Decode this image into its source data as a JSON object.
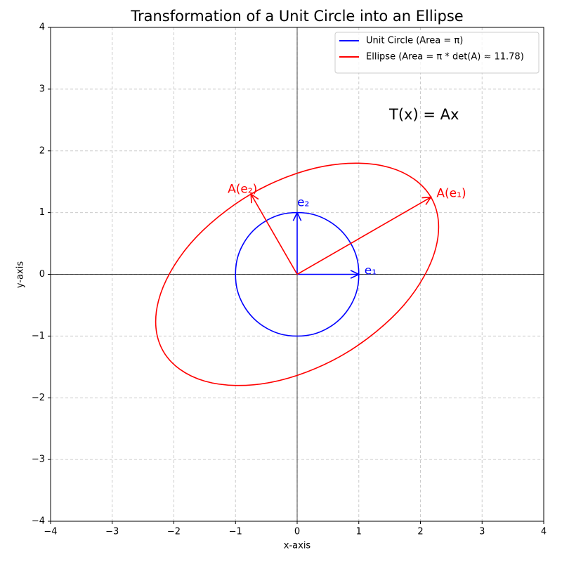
{
  "chart_data": {
    "type": "line",
    "title": "Transformation of a Unit Circle into an Ellipse",
    "xlabel": "x-axis",
    "ylabel": "y-axis",
    "xlim": [
      -4,
      4
    ],
    "ylim": [
      -4,
      4
    ],
    "xticks": [
      {
        "value": -4,
        "label": "−4"
      },
      {
        "value": -3,
        "label": "−3"
      },
      {
        "value": -2,
        "label": "−2"
      },
      {
        "value": -1,
        "label": "−1"
      },
      0,
      1,
      2,
      3,
      4
    ],
    "yticks": [
      {
        "value": -4,
        "label": "−4"
      },
      {
        "value": -3,
        "label": "−3"
      },
      {
        "value": -2,
        "label": "−2"
      },
      {
        "value": -1,
        "label": "−1"
      },
      0,
      1,
      2,
      3,
      4
    ],
    "grid": true,
    "legend": "upper right",
    "annotation": "T(x) = Ax",
    "series": [
      {
        "name": "Unit Circle (Area = π)",
        "color": "#0000ff",
        "x": [
          1,
          0.97,
          0.87,
          0.71,
          0.5,
          0.26,
          0,
          -0.26,
          -0.5,
          -0.71,
          -0.87,
          -0.97,
          -1,
          -0.97,
          -0.87,
          -0.71,
          -0.5,
          -0.26,
          0,
          0.26,
          0.5,
          0.71,
          0.87,
          0.97,
          1
        ],
        "y": [
          0,
          0.26,
          0.5,
          0.71,
          0.87,
          0.97,
          1,
          0.97,
          0.87,
          0.71,
          0.5,
          0.26,
          0,
          -0.26,
          -0.5,
          -0.71,
          -0.87,
          -0.97,
          -1,
          -0.97,
          -0.87,
          -0.71,
          -0.5,
          -0.26,
          0
        ]
      },
      {
        "name": "Ellipse (Area = π * det(A) ≈ 11.78)",
        "color": "#ff0000",
        "x": [
          2.17,
          1.9,
          1.5,
          1.0,
          0.43,
          -0.16,
          -0.75,
          -1.28,
          -1.73,
          -2.06,
          -2.25,
          -2.29,
          -2.17,
          -1.9,
          -1.5,
          -1.0,
          -0.43,
          0.16,
          0.75,
          1.28,
          1.73,
          2.06,
          2.25,
          2.29,
          2.17
        ],
        "y": [
          1.25,
          1.54,
          1.73,
          1.8,
          1.75,
          1.58,
          1.3,
          0.93,
          0.5,
          0.03,
          -0.43,
          -0.87,
          -1.25,
          -1.54,
          -1.73,
          -1.8,
          -1.75,
          -1.58,
          -1.3,
          -0.93,
          -0.5,
          -0.03,
          0.43,
          0.87,
          1.25
        ]
      }
    ],
    "vectors": [
      {
        "name": "e₁",
        "color": "#0000ff",
        "x": 1,
        "y": 0
      },
      {
        "name": "e₂",
        "color": "#0000ff",
        "x": 0,
        "y": 1
      },
      {
        "name": "A(e₁)",
        "color": "#ff0000",
        "x": 2.17,
        "y": 1.25
      },
      {
        "name": "A(e₂)",
        "color": "#ff0000",
        "x": -0.75,
        "y": 1.3
      }
    ]
  }
}
